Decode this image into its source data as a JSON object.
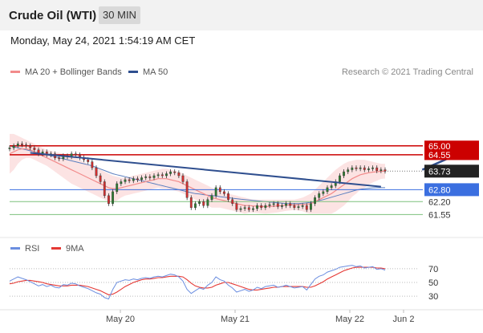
{
  "header": {
    "title": "Crude Oil (WTI)",
    "timeframe": "30 MIN"
  },
  "timestamp": "Monday, May 24, 2021 1:54:19 AM CET",
  "legend": {
    "ma20": "MA 20 + Bollinger Bands",
    "ma50": "MA 50"
  },
  "credit": "Research © 2021 Trading Central",
  "rsi_legend": {
    "rsi": "RSI",
    "ma9": "9MA"
  },
  "colors": {
    "up": "#2e7d32",
    "down": "#d32f2f",
    "ma20": "#f28b8b",
    "band": "#fbdada",
    "ma50": "#5b7fbf",
    "trend": "#2f4f8f",
    "rsi": "#6b8ee0",
    "rsi_ma": "#e53935",
    "resistance": "#cc0000",
    "pivot": "#3b6fe0",
    "support": "#7dc17d"
  },
  "chart_data": {
    "type": "candlestick",
    "x_ticks": [
      "May 20",
      "May 21",
      "May 22",
      "Jun 2"
    ],
    "y_range": [
      60.6,
      66.4
    ],
    "levels": [
      {
        "value": 65.0,
        "label": "65.00",
        "kind": "resistance"
      },
      {
        "value": 64.55,
        "label": "64.55",
        "kind": "resistance"
      },
      {
        "value": 63.73,
        "label": "63.73",
        "kind": "last"
      },
      {
        "value": 62.8,
        "label": "62.80",
        "kind": "pivot"
      },
      {
        "value": 62.2,
        "label": "62.20",
        "kind": "support"
      },
      {
        "value": 61.55,
        "label": "61.55",
        "kind": "support"
      }
    ],
    "close": [
      64.9,
      65.0,
      65.1,
      65.05,
      65.0,
      64.9,
      64.8,
      64.6,
      64.7,
      64.55,
      64.6,
      64.4,
      64.35,
      64.5,
      64.45,
      64.6,
      64.55,
      64.4,
      64.3,
      64.2,
      63.9,
      63.5,
      63.2,
      62.5,
      62.1,
      62.7,
      63.1,
      63.2,
      63.3,
      63.25,
      63.35,
      63.3,
      63.4,
      63.45,
      63.4,
      63.5,
      63.55,
      63.5,
      63.6,
      63.7,
      63.65,
      63.5,
      63.2,
      62.4,
      61.9,
      62.1,
      62.2,
      62.0,
      62.3,
      62.5,
      62.9,
      62.7,
      62.6,
      62.3,
      62.1,
      61.8,
      61.85,
      61.9,
      61.8,
      61.85,
      62.0,
      61.9,
      62.0,
      62.05,
      62.1,
      61.95,
      62.0,
      62.1,
      62.0,
      61.9,
      61.95,
      62.0,
      61.8,
      62.1,
      62.4,
      62.6,
      62.7,
      62.9,
      63.0,
      63.2,
      63.5,
      63.7,
      63.8,
      63.9,
      63.85,
      63.9,
      63.8,
      63.85,
      63.9,
      63.75,
      63.8,
      63.73
    ],
    "ma20": [
      64.6,
      64.7,
      64.8,
      64.85,
      64.85,
      64.8,
      64.7,
      64.6,
      64.5,
      64.4,
      64.3,
      64.2,
      64.1,
      64.0,
      63.9,
      63.8,
      63.7,
      63.6,
      63.5,
      63.4,
      63.3,
      63.2,
      63.1,
      63.0,
      62.9,
      62.85,
      62.85,
      62.9,
      62.95,
      63.0,
      63.05,
      63.1,
      63.15,
      63.2,
      63.25,
      63.3,
      63.35,
      63.35,
      63.35,
      63.3,
      63.25,
      63.2,
      63.1,
      63.0,
      62.9,
      62.8,
      62.7,
      62.6,
      62.5,
      62.4,
      62.35,
      62.3,
      62.25,
      62.2,
      62.15,
      62.1,
      62.05,
      62.0,
      62.0,
      61.98,
      61.97,
      61.96,
      61.95,
      61.96,
      61.97,
      61.98,
      62.0,
      62.02,
      62.03,
      62.04,
      62.05,
      62.06,
      62.07,
      62.1,
      62.2,
      62.3,
      62.4,
      62.5,
      62.6,
      62.75,
      62.9,
      63.05,
      63.2,
      63.35,
      63.45,
      63.55,
      63.6,
      63.65,
      63.68,
      63.7,
      63.72,
      63.73
    ],
    "upper": [
      65.6,
      65.6,
      65.5,
      65.4,
      65.3,
      65.2,
      65.1,
      65.0,
      64.9,
      64.8,
      64.75,
      64.7,
      64.65,
      64.6,
      64.55,
      64.5,
      64.4,
      64.3,
      64.2,
      64.1,
      64.0,
      63.9,
      63.8,
      63.7,
      63.6,
      63.5,
      63.45,
      63.4,
      63.4,
      63.45,
      63.5,
      63.55,
      63.6,
      63.65,
      63.7,
      63.75,
      63.8,
      63.85,
      63.85,
      63.8,
      63.75,
      63.7,
      63.6,
      63.5,
      63.4,
      63.3,
      63.2,
      63.1,
      63.0,
      62.9,
      62.8,
      62.7,
      62.65,
      62.6,
      62.55,
      62.5,
      62.45,
      62.4,
      62.35,
      62.3,
      62.3,
      62.3,
      62.3,
      62.3,
      62.3,
      62.3,
      62.3,
      62.3,
      62.3,
      62.3,
      62.35,
      62.4,
      62.5,
      62.6,
      62.8,
      63.0,
      63.2,
      63.4,
      63.6,
      63.8,
      63.95,
      64.1,
      64.2,
      64.25,
      64.3,
      64.3,
      64.3,
      64.25,
      64.2,
      64.15,
      64.1,
      64.1
    ],
    "lower": [
      63.6,
      63.8,
      64.1,
      64.3,
      64.4,
      64.4,
      64.3,
      64.2,
      64.1,
      64.0,
      63.85,
      63.7,
      63.55,
      63.4,
      63.25,
      63.1,
      63.0,
      62.9,
      62.8,
      62.7,
      62.6,
      62.5,
      62.4,
      62.3,
      62.2,
      62.2,
      62.25,
      62.4,
      62.5,
      62.55,
      62.6,
      62.65,
      62.7,
      62.75,
      62.8,
      62.85,
      62.9,
      62.85,
      62.85,
      62.8,
      62.75,
      62.7,
      62.6,
      62.5,
      62.4,
      62.3,
      62.2,
      62.1,
      62.0,
      61.9,
      61.9,
      61.9,
      61.85,
      61.8,
      61.75,
      61.7,
      61.65,
      61.6,
      61.65,
      61.66,
      61.64,
      61.62,
      61.6,
      61.62,
      61.64,
      61.66,
      61.7,
      61.74,
      61.76,
      61.78,
      61.75,
      61.72,
      61.64,
      61.6,
      61.6,
      61.6,
      61.6,
      61.6,
      61.6,
      61.7,
      61.85,
      62.0,
      62.2,
      62.45,
      62.6,
      62.8,
      62.9,
      63.05,
      63.16,
      63.25,
      63.34,
      63.36
    ],
    "ma50": [
      65.0,
      64.95,
      64.9,
      64.85,
      64.8,
      64.75,
      64.7,
      64.65,
      64.6,
      64.55,
      64.5,
      64.45,
      64.4,
      64.35,
      64.3,
      64.25,
      64.2,
      64.15,
      64.1,
      64.05,
      64.0,
      63.92,
      63.84,
      63.76,
      63.68,
      63.6,
      63.55,
      63.5,
      63.45,
      63.4,
      63.35,
      63.3,
      63.25,
      63.2,
      63.15,
      63.1,
      63.05,
      63.0,
      62.95,
      62.9,
      62.85,
      62.8,
      62.75,
      62.7,
      62.65,
      62.6,
      62.58,
      62.55,
      62.52,
      62.5,
      62.48,
      62.45,
      62.42,
      62.4,
      62.37,
      62.35,
      62.32,
      62.3,
      62.28,
      62.26,
      62.24,
      62.22,
      62.2,
      62.18,
      62.16,
      62.14,
      62.12,
      62.1,
      62.1,
      62.1,
      62.1,
      62.12,
      62.14,
      62.16,
      62.2,
      62.25,
      62.3,
      62.36,
      62.42,
      62.48,
      62.54,
      62.6,
      62.66,
      62.72,
      62.78,
      62.82,
      62.85,
      62.87,
      62.89,
      62.9,
      62.9,
      62.9
    ],
    "rsi": [
      52,
      55,
      58,
      56,
      54,
      51,
      48,
      45,
      47,
      44,
      46,
      43,
      42,
      47,
      46,
      49,
      48,
      45,
      43,
      41,
      38,
      35,
      33,
      28,
      26,
      40,
      50,
      52,
      54,
      53,
      55,
      54,
      56,
      57,
      56,
      58,
      59,
      58,
      60,
      62,
      61,
      58,
      52,
      40,
      34,
      38,
      42,
      40,
      46,
      50,
      58,
      54,
      52,
      46,
      42,
      36,
      38,
      40,
      37,
      39,
      43,
      41,
      44,
      45,
      46,
      43,
      44,
      46,
      44,
      42,
      43,
      44,
      39,
      47,
      55,
      59,
      61,
      65,
      67,
      69,
      72,
      73,
      74,
      75,
      73,
      74,
      71,
      72,
      73,
      69,
      70,
      68
    ],
    "rsi_ma": [
      48,
      49,
      51,
      52,
      53,
      53,
      52,
      51,
      50,
      48,
      47,
      46,
      45,
      45,
      45,
      46,
      46,
      46,
      45,
      44,
      42,
      40,
      38,
      35,
      32,
      33,
      36,
      40,
      44,
      47,
      50,
      52,
      54,
      55,
      55,
      56,
      57,
      57,
      58,
      59,
      59,
      59,
      58,
      54,
      49,
      45,
      43,
      42,
      42,
      43,
      46,
      48,
      50,
      50,
      48,
      46,
      44,
      42,
      40,
      39,
      39,
      40,
      41,
      42,
      43,
      43,
      44,
      44,
      44,
      44,
      44,
      44,
      43,
      43,
      45,
      48,
      51,
      55,
      58,
      61,
      64,
      67,
      69,
      71,
      72,
      72,
      72,
      72,
      72,
      71,
      71,
      70
    ],
    "rsi_range": [
      15,
      85
    ],
    "rsi_levels": [
      70,
      50,
      30
    ],
    "trendline": [
      [
        5,
        64.65
      ],
      [
        90,
        62.95
      ]
    ],
    "projection": [
      [
        100,
        63.8
      ],
      [
        111,
        64.8
      ]
    ]
  }
}
